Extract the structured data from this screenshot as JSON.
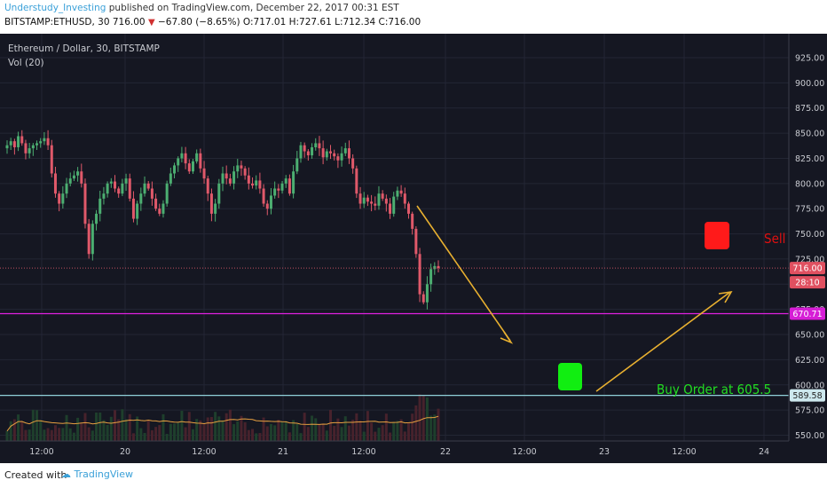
{
  "header": {
    "author": "Understudy_Investing",
    "published": "published on TradingView.com, December 22, 2017 00:31 EST",
    "symbol": "BITSTAMP:ETHUSD, 30",
    "last": "716.00",
    "change_arrow": "▼",
    "change": "−67.80 (−8.65%)",
    "ohlc": "O:717.01 H:727.61 L:712.34 C:716.00"
  },
  "chart_title": "Ethereum / Dollar, 30, BITSTAMP",
  "vol_label": "Vol (20)",
  "footer": {
    "created": "Created with",
    "brand": "TradingView"
  },
  "chart_data": {
    "type": "candlestick",
    "price_axis": [
      "925.00",
      "900.00",
      "875.00",
      "850.00",
      "825.00",
      "800.00",
      "775.00",
      "750.00",
      "725.00",
      "700.00",
      "675.00",
      "650.00",
      "625.00",
      "600.00",
      "575.00",
      "550.00"
    ],
    "time_axis": [
      "12:00",
      "20",
      "12:00",
      "21",
      "12:00",
      "22",
      "12:00",
      "23",
      "12:00",
      "24"
    ],
    "ylim": [
      540,
      935
    ],
    "price_badges": [
      {
        "label": "716.00",
        "value": 716.0,
        "color": "#e05060"
      },
      {
        "label": "28:10",
        "value": 706.0,
        "color": "#e05060"
      },
      {
        "label": "670.71",
        "value": 670.71,
        "color": "#d61ed6"
      },
      {
        "label": "589.58",
        "value": 589.58,
        "color": "#cde8ee"
      }
    ],
    "horizontal_lines": [
      {
        "value": 716.0,
        "color": "#c05060",
        "style": "dotted"
      },
      {
        "value": 670.71,
        "color": "#e020e0",
        "style": "solid"
      },
      {
        "value": 589.58,
        "color": "#8fd0d8",
        "style": "solid"
      }
    ],
    "annotations": [
      {
        "text": "Sell",
        "color": "#e01010"
      },
      {
        "text": "Buy Order at 605.5",
        "color": "#22dd22"
      }
    ],
    "candles_close": [
      838,
      842,
      836,
      847,
      840,
      830,
      835,
      838,
      840,
      842,
      845,
      838,
      810,
      790,
      780,
      790,
      800,
      805,
      808,
      812,
      800,
      760,
      730,
      760,
      770,
      785,
      790,
      800,
      802,
      795,
      790,
      800,
      805,
      785,
      765,
      780,
      790,
      800,
      795,
      785,
      775,
      770,
      780,
      800,
      810,
      818,
      825,
      830,
      820,
      812,
      822,
      830,
      815,
      805,
      790,
      770,
      780,
      800,
      810,
      805,
      800,
      812,
      818,
      815,
      808,
      800,
      798,
      803,
      795,
      780,
      775,
      788,
      795,
      793,
      800,
      805,
      790,
      812,
      825,
      838,
      832,
      828,
      836,
      840,
      835,
      826,
      832,
      830,
      827,
      823,
      830,
      835,
      825,
      815,
      790,
      780,
      786,
      782,
      780,
      778,
      790,
      785,
      780,
      770,
      787,
      793,
      790,
      780,
      770,
      755,
      730,
      690,
      682,
      700,
      715,
      718,
      716
    ]
  }
}
